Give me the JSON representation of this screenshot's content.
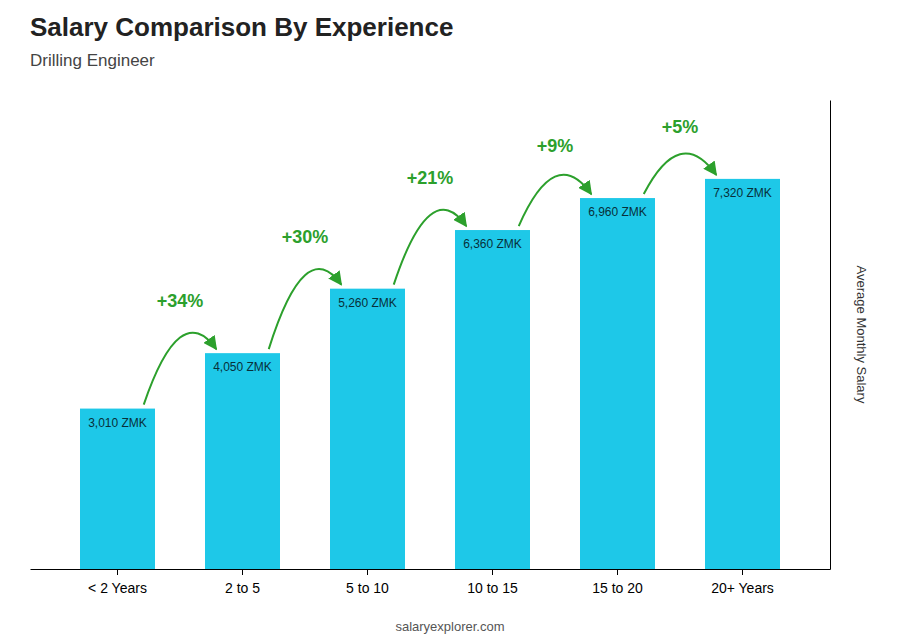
{
  "chart_data": {
    "type": "bar",
    "title": "Salary Comparison By Experience",
    "subtitle": "Drilling Engineer",
    "ylabel": "Average Monthly Salary",
    "footer": "salaryexplorer.com",
    "categories": [
      "< 2 Years",
      "2 to 5",
      "5 to 10",
      "10 to 15",
      "15 to 20",
      "20+ Years"
    ],
    "values": [
      3010,
      4050,
      5260,
      6360,
      6960,
      7320
    ],
    "value_labels": [
      "3,010 ZMK",
      "4,050 ZMK",
      "5,260 ZMK",
      "6,360 ZMK",
      "6,960 ZMK",
      "7,320 ZMK"
    ],
    "data_labels": true,
    "annotations": [
      "+34%",
      "+30%",
      "+21%",
      "+9%",
      "+5%"
    ],
    "color": "#1EC8E8",
    "ylim": [
      0,
      8800
    ],
    "tick_labels": "x",
    "grid": false
  }
}
